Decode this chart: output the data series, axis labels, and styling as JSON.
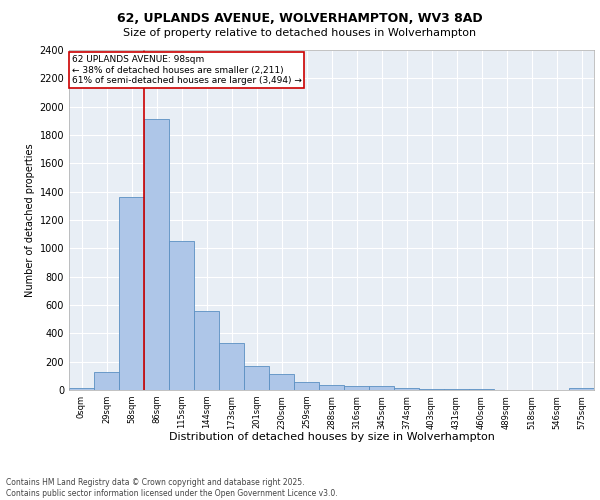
{
  "title_line1": "62, UPLANDS AVENUE, WOLVERHAMPTON, WV3 8AD",
  "title_line2": "Size of property relative to detached houses in Wolverhampton",
  "xlabel": "Distribution of detached houses by size in Wolverhampton",
  "ylabel": "Number of detached properties",
  "footer_line1": "Contains HM Land Registry data © Crown copyright and database right 2025.",
  "footer_line2": "Contains public sector information licensed under the Open Government Licence v3.0.",
  "bin_labels": [
    "0sqm",
    "29sqm",
    "58sqm",
    "86sqm",
    "115sqm",
    "144sqm",
    "173sqm",
    "201sqm",
    "230sqm",
    "259sqm",
    "288sqm",
    "316sqm",
    "345sqm",
    "374sqm",
    "403sqm",
    "431sqm",
    "460sqm",
    "489sqm",
    "518sqm",
    "546sqm",
    "575sqm"
  ],
  "bar_heights": [
    15,
    125,
    1360,
    1910,
    1050,
    560,
    335,
    170,
    110,
    60,
    35,
    25,
    25,
    15,
    5,
    5,
    5,
    0,
    0,
    0,
    15
  ],
  "bar_color": "#aec6e8",
  "bar_edge_color": "#5a8fc2",
  "background_color": "#e8eef5",
  "grid_color": "#ffffff",
  "ylim": [
    0,
    2400
  ],
  "yticks": [
    0,
    200,
    400,
    600,
    800,
    1000,
    1200,
    1400,
    1600,
    1800,
    2000,
    2200,
    2400
  ],
  "property_bin_index": 3,
  "annotation_text_line1": "62 UPLANDS AVENUE: 98sqm",
  "annotation_text_line2": "← 38% of detached houses are smaller (2,211)",
  "annotation_text_line3": "61% of semi-detached houses are larger (3,494) →",
  "vline_color": "#cc0000",
  "annotation_box_edge_color": "#cc0000",
  "annotation_box_face_color": "#ffffff",
  "title_fontsize": 9,
  "subtitle_fontsize": 8,
  "ylabel_fontsize": 7,
  "xlabel_fontsize": 8,
  "ytick_fontsize": 7,
  "xtick_fontsize": 6,
  "annotation_fontsize": 6.5,
  "footer_fontsize": 5.5
}
